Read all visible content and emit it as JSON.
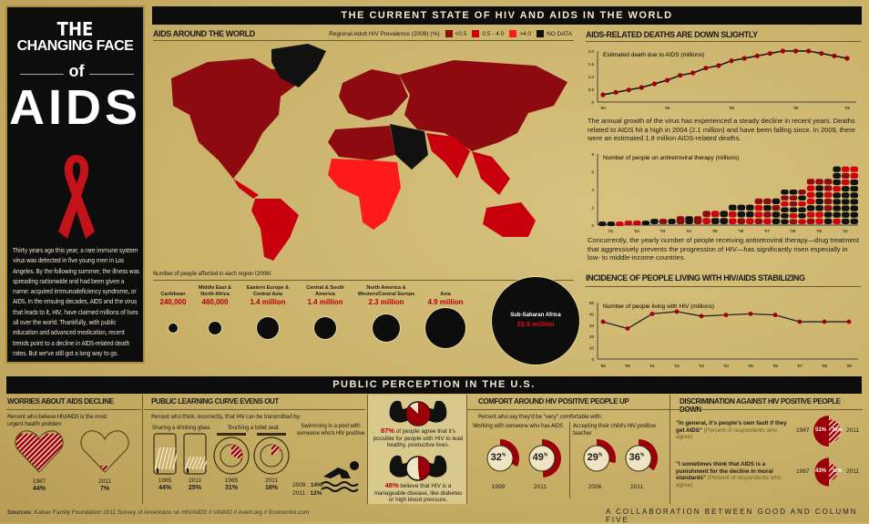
{
  "title": {
    "line1": "THE",
    "line2": "CHANGING FACE",
    "line3": "of",
    "line4": "AIDS"
  },
  "intro": "Thirty years ago this year, a rare immune system virus was detected in five young men in Los Angeles. By the following summer, the illness was spreading nationwide and had been given a name: acquired immunodeficiency syndrome, or AIDS. In the ensuing decades, AIDS and the virus that leads to it, HIV, have claimed millions of lives all over the world. Thankfully, with public education and advanced medication, recent trends point to a decline in AIDS-related death rates. But we've still got a long way to go.",
  "top_banner": "THE CURRENT STATE OF HIV AND AIDS IN THE WORLD",
  "map": {
    "heading": "AIDS AROUND THE WORLD",
    "legend_title": "Regional Adult HIV Prevalence (2009) (%)",
    "legend": [
      {
        "label": "<0.5",
        "color": "#8c0a10"
      },
      {
        "label": "0.5 - 4.0",
        "color": "#c8000e"
      },
      {
        "label": ">4.0",
        "color": "#ff1a1a"
      },
      {
        "label": "NO DATA",
        "color": "#111111"
      }
    ],
    "regions_caption": "Number of people affected in each region (2009)",
    "regions": [
      {
        "name": "Caribbean",
        "value": "240,000",
        "millions": 0.24
      },
      {
        "name": "Middle East & North Africa",
        "value": "460,000",
        "millions": 0.46
      },
      {
        "name": "Eastern Europe & Central Asia",
        "value": "1.4 million",
        "millions": 1.4
      },
      {
        "name": "Central & South America",
        "value": "1.4 million",
        "millions": 1.4
      },
      {
        "name": "North America & Western/Central Europe",
        "value": "2.3 million",
        "millions": 2.3
      },
      {
        "name": "Asia",
        "value": "4.9 million",
        "millions": 4.9
      },
      {
        "name": "Sub-Saharan Africa",
        "value": "22.5 million",
        "millions": 22.5
      }
    ]
  },
  "deaths": {
    "heading": "AIDS-RELATED DEATHS ARE DOWN SLIGHTLY",
    "text": "The annual growth of the virus has experienced a steady decline in recent years. Deaths related to AIDS hit a high in 2004 (2.1 million) and have been falling since. In 2009, there were an estimated 1.8 million AIDS-related deaths."
  },
  "art": {
    "text": "Concurrently, the yearly number of people receiving antiretroviral therapy—drug treatment that aggressively prevents the progression of HIV—has significantly risen especially in low- to middle-income countries."
  },
  "living": {
    "heading": "INCIDENCE OF PEOPLE LIVING WITH HIV/AIDS STABILIZING"
  },
  "chart_data": [
    {
      "type": "line",
      "title": "Estimated death due to AIDS (millions)",
      "x": [
        1990,
        1991,
        1992,
        1993,
        1994,
        1995,
        1996,
        1997,
        1998,
        1999,
        2000,
        2001,
        2002,
        2003,
        2004,
        2005,
        2006,
        2007,
        2008,
        2009
      ],
      "values": [
        0.3,
        0.4,
        0.5,
        0.6,
        0.75,
        0.9,
        1.1,
        1.2,
        1.4,
        1.5,
        1.7,
        1.8,
        1.9,
        2.0,
        2.1,
        2.1,
        2.1,
        2.0,
        1.9,
        1.8
      ],
      "xticks": [
        "'90",
        "'95",
        "'00",
        "'05",
        "'09"
      ],
      "yticks": [
        "0",
        "0.5",
        "1.0",
        "1.5",
        "2.0"
      ],
      "ylim": [
        0,
        2.1
      ]
    },
    {
      "type": "area",
      "title": "Number of people on antiretroviral therapy (millions)",
      "x": [
        "'01",
        "'02",
        "'03",
        "'04",
        "'05",
        "'06",
        "'07",
        "'08",
        "'09",
        "'10"
      ],
      "values": [
        0.4,
        0.5,
        0.7,
        1.0,
        1.6,
        2.3,
        3.0,
        4.0,
        5.2,
        6.6
      ],
      "yticks": [
        "0",
        "2",
        "4",
        "6",
        "8"
      ],
      "ylim": [
        0,
        8
      ]
    },
    {
      "type": "line",
      "title": "Number of people living with HIV (millions)",
      "x": [
        "'98",
        "'99",
        "'01",
        "'02",
        "'03",
        "'04",
        "'05",
        "'06",
        "'07",
        "'08",
        "'09"
      ],
      "values": [
        33,
        27,
        40,
        42,
        38,
        39,
        40,
        39,
        33,
        33,
        33
      ],
      "yticks": [
        "0",
        "10",
        "20",
        "30",
        "40",
        "50"
      ],
      "ylim": [
        0,
        50
      ]
    }
  ],
  "us_banner": "PUBLIC PERCEPTION IN THE U.S.",
  "worries": {
    "heading": "WORRIES ABOUT AIDS DECLINE",
    "sub": "Percent who believe HIV/AIDS is the most urgent health problem",
    "items": [
      {
        "year": "1987",
        "pct": "44%",
        "value": 44
      },
      {
        "year": "2011",
        "pct": "7%",
        "value": 7
      }
    ]
  },
  "learning": {
    "heading": "PUBLIC LEARNING CURVE EVENS OUT",
    "sub": "Percent who think, incorrectly, that HIV can be transmitted by:",
    "glass": {
      "label": "Sharing a drinking glass",
      "items": [
        {
          "year": "1985",
          "pct": "44%",
          "value": 44
        },
        {
          "year": "2011",
          "pct": "25%",
          "value": 25
        }
      ]
    },
    "toilet": {
      "label": "Touching a toilet seat",
      "items": [
        {
          "year": "1985",
          "pct": "31%",
          "value": 31
        },
        {
          "year": "2011",
          "pct": "16%",
          "value": 16
        }
      ]
    },
    "pool": {
      "label": "Swimming in a pool with someone who's HIV positive",
      "items": [
        {
          "year": "2009 :",
          "pct": "14%"
        },
        {
          "year": "2011 :",
          "pct": "12%"
        }
      ]
    }
  },
  "strength": [
    {
      "pct": "87%",
      "text": " of people agree that it's possible for people with HIV to lead healthy, productive lives.",
      "value": 87
    },
    {
      "pct": "48%",
      "text": " believe that HIV is a manageable disease, like diabetes or high blood pressure.",
      "value": 48
    }
  ],
  "comfort": {
    "heading": "COMFORT AROUND HIV POSITIVE PEOPLE UP",
    "sub": "Percent who say they'd be \"very\" comfortable with:",
    "groups": [
      {
        "label": "Working with someone who has AIDS",
        "items": [
          {
            "year": "1999",
            "pct": "32",
            "value": 32
          },
          {
            "year": "2011",
            "pct": "49",
            "value": 49
          }
        ]
      },
      {
        "label": "Accepting their child's HIV positive teacher",
        "items": [
          {
            "year": "2006",
            "pct": "29",
            "value": 29
          },
          {
            "year": "2011",
            "pct": "36",
            "value": 36
          }
        ]
      }
    ],
    "unit": "%"
  },
  "discrimination": {
    "heading": "DISCRIMINATION AGAINST HIV POSITIVE PEOPLE DOWN",
    "items": [
      {
        "quote": "\"In general, it's people's own fault if they get AIDS\"",
        "note": "(Percent of respondents who agree)",
        "y1": "1987",
        "v1": "51%",
        "n1": 51,
        "y2": "2011",
        "v2": "29%",
        "n2": 29
      },
      {
        "quote": "\"I sometimes think that AIDS is a punishment for the decline in moral standards\"",
        "note": "(Percent of respondents who agree)",
        "y1": "1987",
        "v1": "43%",
        "n1": 43,
        "y2": "2011",
        "v2": "16%",
        "n2": 16
      }
    ]
  },
  "footer": {
    "sources_label": "Sources:",
    "sources": "Kaiser Family Foundation 2011 Survey of Americans on HIV/AIDS  //  UNAID  //  Avert.org  //  Economist.com",
    "credit": "A COLLABORATION BETWEEN GOOD AND COLUMN FIVE"
  },
  "colors": {
    "red": "#b3000c",
    "black": "#0d0d0d",
    "gold": "#c9b169"
  }
}
